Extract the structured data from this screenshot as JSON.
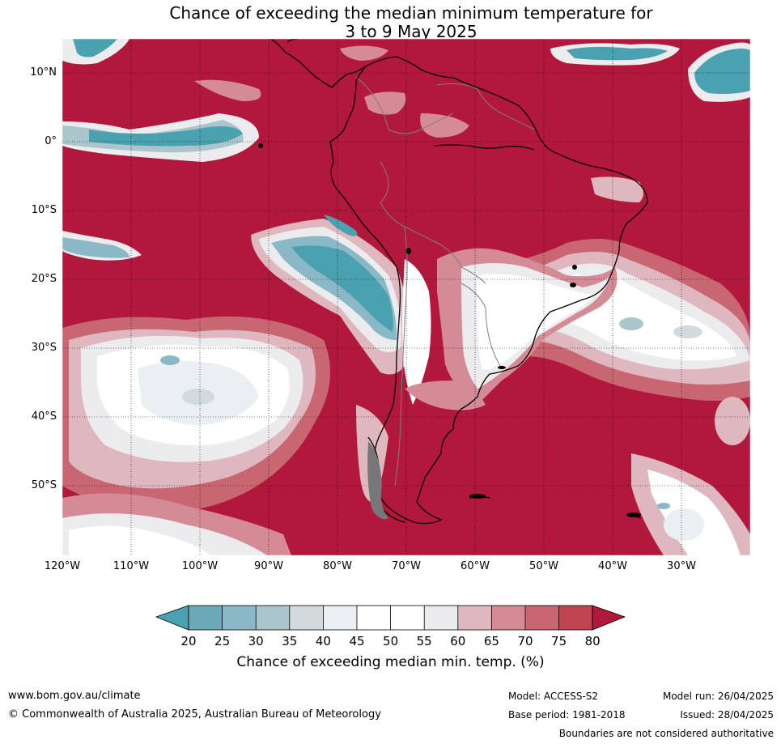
{
  "title": {
    "line1": "Chance of exceeding the median minimum temperature for",
    "line2": "3 to 9 May 2025"
  },
  "map": {
    "region": "South America and surrounding oceans",
    "lat_range": [
      -60,
      15
    ],
    "lon_range": [
      -120,
      -20
    ],
    "lat_labels": [
      "10°N",
      "0°",
      "10°S",
      "20°S",
      "30°S",
      "40°S",
      "50°S"
    ],
    "lon_labels": [
      "120°W",
      "110°W",
      "100°W",
      "90°W",
      "80°W",
      "70°W",
      "60°W",
      "50°W",
      "40°W",
      "30°W"
    ],
    "colors": {
      "high_probability": "#b2183b",
      "near_median": "#ffffff",
      "low_probability": "#4aa2b0",
      "land_outline": "#000000",
      "borders": "#808080"
    }
  },
  "colorbar": {
    "ticks": [
      "20",
      "25",
      "30",
      "35",
      "40",
      "45",
      "50",
      "55",
      "60",
      "65",
      "70",
      "75",
      "80"
    ],
    "colors": [
      "#4aa2b0",
      "#6aaab7",
      "#8bb8c6",
      "#aac5cb",
      "#d2dadc",
      "#eaf0f2",
      "#ffffff",
      "#ffffff",
      "#ecebed",
      "#dfb8bf",
      "#d48b96",
      "#c86771",
      "#c04552",
      "#b2183b"
    ],
    "label": "Chance of exceeding median min. temp. (%)"
  },
  "footer": {
    "website": "www.bom.gov.au/climate",
    "copyright": "© Commonwealth of Australia 2025, Australian Bureau of Meteorology",
    "model": "Model: ACCESS-S2",
    "base_period": "Base period: 1981-2018",
    "model_run": "Model run: 26/04/2025",
    "issued": "Issued: 28/04/2025",
    "disclaimer": "Boundaries are not considered authoritative"
  }
}
